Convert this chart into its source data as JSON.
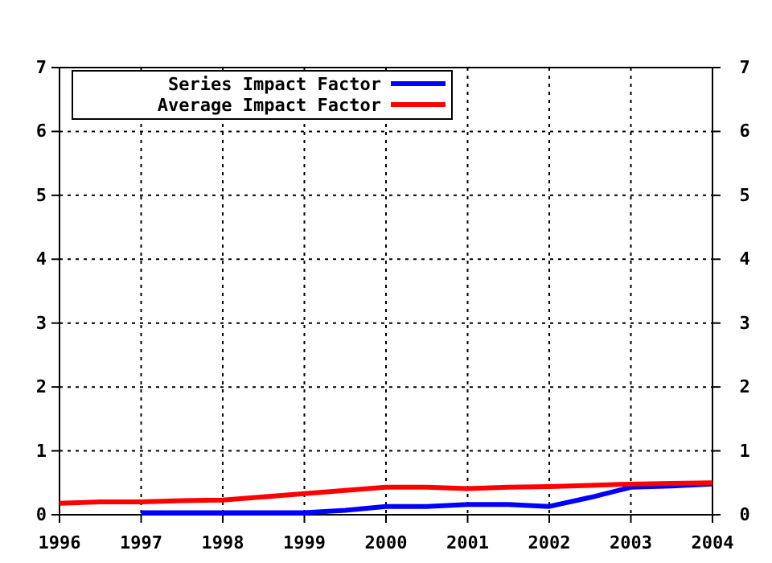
{
  "chart_data": {
    "type": "line",
    "xlim": [
      1996,
      2004
    ],
    "xticks": [
      1996,
      1997,
      1998,
      1999,
      2000,
      2001,
      2002,
      2003,
      2004
    ],
    "ylim": [
      0,
      7
    ],
    "yticks": [
      0,
      1,
      2,
      3,
      4,
      5,
      6,
      7
    ],
    "y2lim": [
      0,
      7
    ],
    "y2ticks": [
      0,
      1,
      2,
      3,
      4,
      5,
      6,
      7
    ],
    "grid": true,
    "legend": "top left",
    "marker": "none",
    "line_style": "solid",
    "series": [
      {
        "name": "Series Impact Factor",
        "color": "#0000ff",
        "x": [
          1997,
          1998,
          1999,
          1999.5,
          2000,
          2000.5,
          2001,
          2001.5,
          2002,
          2002.5,
          2003,
          2003.5,
          2004
        ],
        "values": [
          0.03,
          0.03,
          0.03,
          0.07,
          0.13,
          0.13,
          0.16,
          0.16,
          0.13,
          0.27,
          0.43,
          0.45,
          0.48
        ]
      },
      {
        "name": "Average Impact Factor",
        "color": "#ff0000",
        "x": [
          1996,
          1996.5,
          1997,
          1997.5,
          1998,
          1998.5,
          1999,
          1999.5,
          2000,
          2000.5,
          2001,
          2001.5,
          2002,
          2002.5,
          2003,
          2003.5,
          2004
        ],
        "values": [
          0.18,
          0.2,
          0.2,
          0.22,
          0.23,
          0.28,
          0.33,
          0.38,
          0.43,
          0.43,
          0.41,
          0.43,
          0.44,
          0.46,
          0.48,
          0.49,
          0.5
        ]
      }
    ]
  }
}
